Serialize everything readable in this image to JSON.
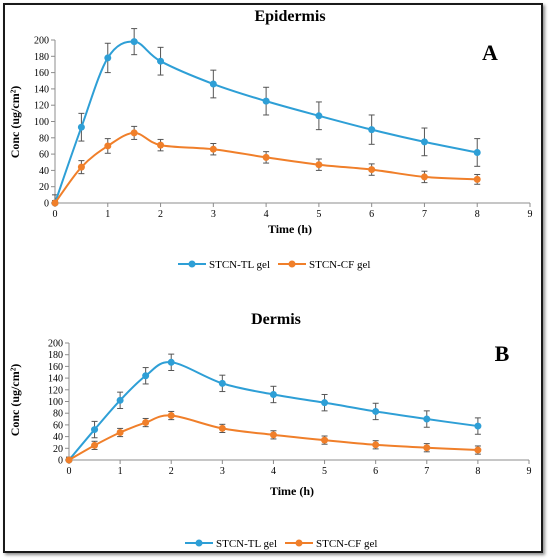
{
  "chart_data": [
    {
      "type": "line",
      "title": "Epidermis",
      "panel_label": "A",
      "xlabel": "Time (h)",
      "ylabel": "Conc (ug/cm²)",
      "xlim": [
        0,
        9
      ],
      "ylim": [
        0,
        200
      ],
      "xticks": [
        0,
        1,
        2,
        3,
        4,
        5,
        6,
        7,
        8,
        9
      ],
      "yticks": [
        0,
        20,
        40,
        60,
        80,
        100,
        120,
        140,
        160,
        180,
        200
      ],
      "grid": false,
      "legend": "bottom",
      "x": [
        0,
        0.5,
        1,
        1.5,
        2,
        3,
        4,
        5,
        6,
        7,
        8
      ],
      "series": [
        {
          "name": "STCN-TL gel",
          "color": "#2e9fd6",
          "values": [
            0,
            93,
            178,
            198,
            174,
            146,
            125,
            107,
            90,
            75,
            62
          ],
          "errors": [
            10,
            17,
            18,
            16,
            17,
            17,
            17,
            17,
            18,
            17,
            17
          ]
        },
        {
          "name": "STCN-CF gel",
          "color": "#f07f2a",
          "values": [
            0,
            44,
            70,
            86,
            71,
            66,
            56,
            47,
            41,
            32,
            29
          ],
          "errors": [
            3,
            8,
            9,
            8,
            7,
            7,
            7,
            7,
            7,
            7,
            6
          ]
        }
      ]
    },
    {
      "type": "line",
      "title": "Dermis",
      "panel_label": "B",
      "xlabel": "Time (h)",
      "ylabel": "Conc (ug/cm²)",
      "xlim": [
        0,
        9
      ],
      "ylim": [
        0,
        200
      ],
      "xticks": [
        0,
        1,
        2,
        3,
        4,
        5,
        6,
        7,
        8,
        9
      ],
      "yticks": [
        0,
        20,
        40,
        60,
        80,
        100,
        120,
        140,
        160,
        180,
        200
      ],
      "grid": false,
      "legend": "bottom",
      "x": [
        0,
        0.5,
        1,
        1.5,
        2,
        3,
        4,
        5,
        6,
        7,
        8
      ],
      "series": [
        {
          "name": "STCN-TL gel",
          "color": "#2e9fd6",
          "values": [
            0,
            52,
            102,
            144,
            167,
            131,
            112,
            98,
            83,
            70,
            58
          ],
          "errors": [
            5,
            14,
            14,
            14,
            14,
            14,
            14,
            14,
            14,
            14,
            14
          ]
        },
        {
          "name": "STCN-CF gel",
          "color": "#f07f2a",
          "values": [
            0,
            25,
            47,
            64,
            76,
            54,
            43,
            34,
            26,
            21,
            17
          ],
          "errors": [
            3,
            7,
            7,
            7,
            7,
            7,
            7,
            7,
            7,
            7,
            7
          ]
        }
      ]
    }
  ]
}
